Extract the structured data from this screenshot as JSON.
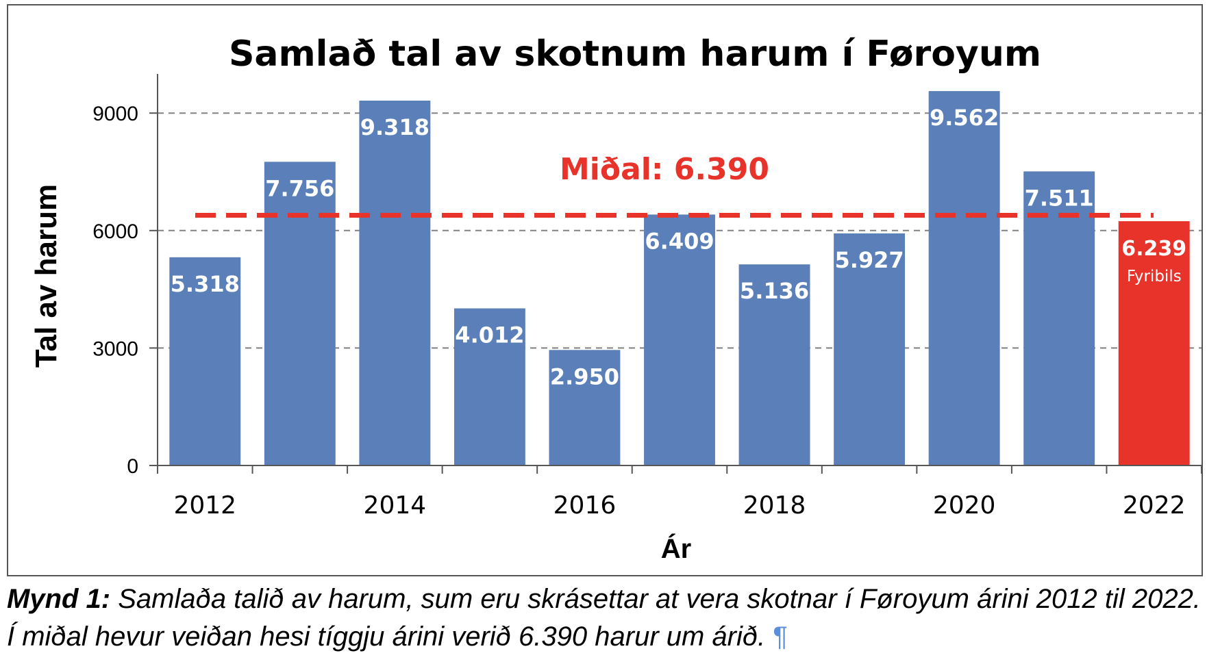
{
  "chart_data": {
    "type": "bar",
    "title": "Samlað tal av skotnum harum í Føroyum",
    "xlabel": "Ár",
    "ylabel": "Tal av harum",
    "categories": [
      "2012",
      "2013",
      "2014",
      "2015",
      "2016",
      "2017",
      "2018",
      "2019",
      "2020",
      "2021",
      "2022"
    ],
    "x_tick_labels": [
      "2012",
      "2014",
      "2016",
      "2018",
      "2020",
      "2022"
    ],
    "values": [
      5318,
      7756,
      9318,
      4012,
      2950,
      6409,
      5136,
      5927,
      9562,
      7511,
      6239
    ],
    "data_labels": [
      "5.318",
      "7.756",
      "9.318",
      "4.012",
      "2.950",
      "6.409",
      "5.136",
      "5.927",
      "9.562",
      "7.511",
      "6.239"
    ],
    "highlight": {
      "index": 10,
      "sublabel": "Fyribils",
      "color": "#e8332a"
    },
    "bar_color": "#5b80b9",
    "ylim": [
      0,
      10000
    ],
    "yticks": [
      0,
      3000,
      6000,
      9000
    ],
    "grid": "horizontal-dashed",
    "reference_line": {
      "value": 6390,
      "label": "Miðal: 6.390",
      "color": "#e8332a",
      "style": "dashed"
    }
  },
  "caption": {
    "lead": "Mynd 1:",
    "text": " Samlaða talið av harum, sum eru skrásettar at vera skotnar í Føroyum árini 2012 til 2022. Í miðal hevur veiðan hesi tíggju árini verið 6.390 harur um árið. ",
    "pilcrow": "¶"
  }
}
